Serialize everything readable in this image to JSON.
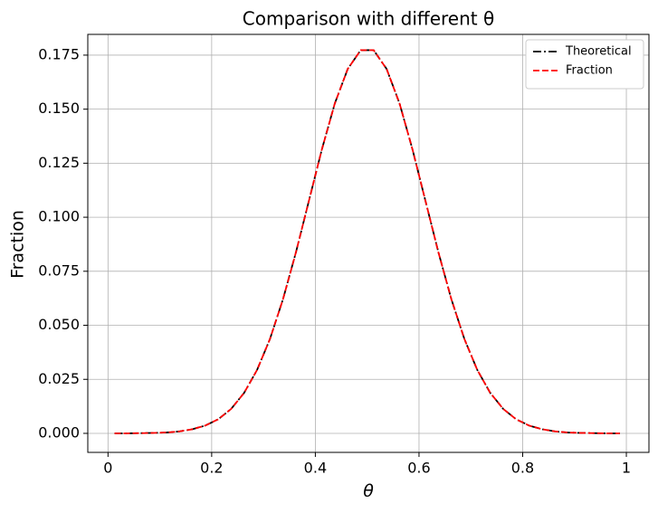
{
  "chart_data": {
    "type": "line",
    "title": "Comparison with different θ",
    "x_label": "θ",
    "y_label": "Fraction",
    "x": [
      0.0125,
      0.0375,
      0.0625,
      0.0875,
      0.1125,
      0.1375,
      0.1625,
      0.1875,
      0.2125,
      0.2375,
      0.2625,
      0.2875,
      0.3125,
      0.3375,
      0.3625,
      0.3875,
      0.4125,
      0.4375,
      0.4625,
      0.4875,
      0.5125,
      0.5375,
      0.5625,
      0.5875,
      0.6125,
      0.6375,
      0.6625,
      0.6875,
      0.7125,
      0.7375,
      0.7625,
      0.7875,
      0.8125,
      0.8375,
      0.8625,
      0.8875,
      0.9125,
      0.9375,
      0.9625,
      0.9875
    ],
    "series": [
      {
        "name": "Theoretical",
        "color": "#000000",
        "dash": "dashdot",
        "values": [
          0.0,
          0.0,
          0.0001,
          0.0002,
          0.0004,
          0.0009,
          0.0019,
          0.0036,
          0.0065,
          0.0113,
          0.0187,
          0.0293,
          0.0437,
          0.062,
          0.0837,
          0.1075,
          0.1313,
          0.1526,
          0.1686,
          0.1773,
          0.1773,
          0.1686,
          0.1526,
          0.1313,
          0.1075,
          0.0837,
          0.062,
          0.0437,
          0.0293,
          0.0187,
          0.0113,
          0.0065,
          0.0036,
          0.0019,
          0.0009,
          0.0004,
          0.0002,
          0.0001,
          0.0,
          0.0
        ]
      },
      {
        "name": "Fraction",
        "color": "#ff0000",
        "dash": "dashed",
        "values": [
          0.0,
          0.0,
          0.0001,
          0.0002,
          0.0004,
          0.0009,
          0.0019,
          0.0036,
          0.0065,
          0.0113,
          0.0187,
          0.0293,
          0.0437,
          0.062,
          0.0837,
          0.1075,
          0.1313,
          0.1526,
          0.1686,
          0.1773,
          0.1773,
          0.1686,
          0.1526,
          0.1313,
          0.1075,
          0.0837,
          0.062,
          0.0437,
          0.0293,
          0.0187,
          0.0113,
          0.0065,
          0.0036,
          0.0019,
          0.0009,
          0.0004,
          0.0002,
          0.0001,
          0.0,
          0.0
        ]
      }
    ],
    "xlim": [
      -0.039,
      1.0436
    ],
    "ylim": [
      -0.0088,
      0.1846
    ],
    "xticks": [
      0.0,
      0.2,
      0.4,
      0.6,
      0.8,
      1.0
    ],
    "yticks": [
      {
        "value": 0,
        "label": "0.000"
      },
      {
        "value": 0.025,
        "label": "0.025"
      },
      {
        "value": 0.05,
        "label": "0.050"
      },
      {
        "value": 0.075,
        "label": "0.075"
      },
      {
        "value": 0.1,
        "label": "0.100"
      },
      {
        "value": 0.125,
        "label": "0.125"
      },
      {
        "value": 0.15,
        "label": "0.150"
      },
      {
        "value": 0.175,
        "label": "0.175"
      }
    ],
    "grid": true,
    "legend": "upper-right"
  }
}
